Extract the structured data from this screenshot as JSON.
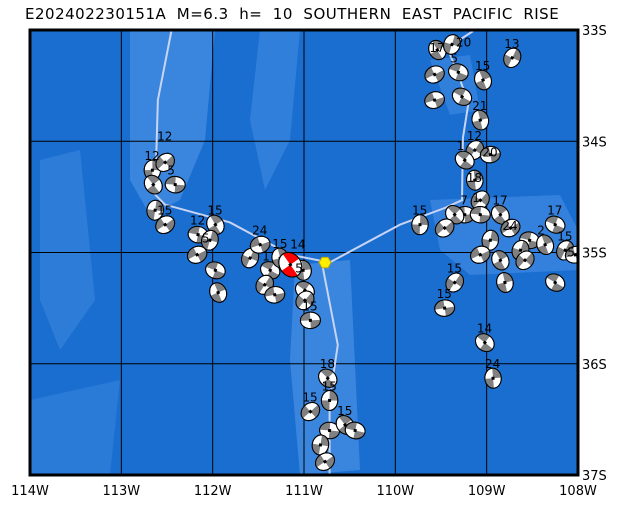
{
  "title": "E202402230151A  M=6.3  h=  10  SOUTHERN  EAST  PACIFIC  RISE",
  "map": {
    "lon_range": [
      -114,
      -108
    ],
    "lat_range": [
      -37,
      -33
    ],
    "lon_ticks": [
      {
        "v": -114,
        "label": "114W"
      },
      {
        "v": -113,
        "label": "113W"
      },
      {
        "v": -112,
        "label": "112W"
      },
      {
        "v": -111,
        "label": "111W"
      },
      {
        "v": -110,
        "label": "110W"
      },
      {
        "v": -109,
        "label": "109W"
      },
      {
        "v": -108,
        "label": "108W"
      }
    ],
    "lat_ticks": [
      {
        "v": -33,
        "label": "33S"
      },
      {
        "v": -34,
        "label": "34S"
      },
      {
        "v": -35,
        "label": "35S"
      },
      {
        "v": -36,
        "label": "36S"
      },
      {
        "v": -37,
        "label": "37S"
      }
    ],
    "grid": true,
    "colors": {
      "ocean": "#1a6ed0",
      "shallow": "#3a86de",
      "plate_boundary": "#c8d4f4",
      "main_event": "#ff0000",
      "beachball": "#808080",
      "epicenter_marker": "#ffee00"
    },
    "plate_boundary": [
      [
        [
          -112.45,
          -33.0
        ],
        [
          -112.6,
          -33.63
        ],
        [
          -112.63,
          -34.48
        ],
        [
          -112.52,
          -34.57
        ],
        [
          -111.81,
          -34.73
        ],
        [
          -111.15,
          -35.02
        ],
        [
          -110.72,
          -35.09
        ]
      ],
      [
        [
          -110.72,
          -35.09
        ],
        [
          -109.95,
          -34.75
        ],
        [
          -109.46,
          -34.6
        ],
        [
          -109.27,
          -34.53
        ],
        [
          -109.26,
          -33.97
        ],
        [
          -109.2,
          -33.66
        ],
        [
          -109.29,
          -33.45
        ],
        [
          -109.43,
          -33.16
        ],
        [
          -109.15,
          -33.01
        ]
      ],
      [
        [
          -110.8,
          -35.11
        ],
        [
          -110.63,
          -35.83
        ],
        [
          -110.72,
          -36.33
        ],
        [
          -110.72,
          -37.0
        ]
      ]
    ],
    "main_event": {
      "lon": -111.15,
      "lat": -35.11,
      "depth_label": "14"
    },
    "epicenter_marker": {
      "lon": -110.77,
      "lat": -35.09,
      "icon": "hexagon"
    },
    "events": [
      {
        "lon": -112.66,
        "lat": -34.26,
        "label": "12"
      },
      {
        "lon": -112.52,
        "lat": -34.19,
        "label": "12"
      },
      {
        "lon": -112.41,
        "lat": -34.39,
        "label": "5"
      },
      {
        "lon": -112.65,
        "lat": -34.39,
        "label": ""
      },
      {
        "lon": -112.63,
        "lat": -34.62,
        "label": ""
      },
      {
        "lon": -112.52,
        "lat": -34.75,
        "label": "15"
      },
      {
        "lon": -112.16,
        "lat": -34.84,
        "label": "12"
      },
      {
        "lon": -111.97,
        "lat": -34.75,
        "label": "15"
      },
      {
        "lon": -112.03,
        "lat": -34.89,
        "label": "5"
      },
      {
        "lon": -112.17,
        "lat": -35.02,
        "label": ""
      },
      {
        "lon": -111.97,
        "lat": -35.16,
        "label": ""
      },
      {
        "lon": -111.94,
        "lat": -35.36,
        "label": ""
      },
      {
        "lon": -111.59,
        "lat": -35.05,
        "label": ""
      },
      {
        "lon": -111.48,
        "lat": -34.93,
        "label": "24"
      },
      {
        "lon": -111.37,
        "lat": -35.16,
        "label": "1"
      },
      {
        "lon": -111.26,
        "lat": -35.05,
        "label": "15"
      },
      {
        "lon": -111.43,
        "lat": -35.29,
        "label": ""
      },
      {
        "lon": -111.32,
        "lat": -35.38,
        "label": ""
      },
      {
        "lon": -110.99,
        "lat": -35.34,
        "label": ""
      },
      {
        "lon": -111.01,
        "lat": -35.16,
        "label": "5"
      },
      {
        "lon": -110.99,
        "lat": -35.43,
        "label": ""
      },
      {
        "lon": -110.93,
        "lat": -35.61,
        "label": "15"
      },
      {
        "lon": -110.74,
        "lat": -36.13,
        "label": "18"
      },
      {
        "lon": -110.72,
        "lat": -36.33,
        "label": "15"
      },
      {
        "lon": -110.93,
        "lat": -36.43,
        "label": "15"
      },
      {
        "lon": -110.72,
        "lat": -36.6,
        "label": ""
      },
      {
        "lon": -110.55,
        "lat": -36.55,
        "label": "15"
      },
      {
        "lon": -110.82,
        "lat": -36.73,
        "label": ""
      },
      {
        "lon": -110.77,
        "lat": -36.88,
        "label": ""
      },
      {
        "lon": -110.44,
        "lat": -36.6,
        "label": ""
      },
      {
        "lon": -109.54,
        "lat": -33.18,
        "label": "17"
      },
      {
        "lon": -109.38,
        "lat": -33.13,
        "label": "20"
      },
      {
        "lon": -109.57,
        "lat": -33.4,
        "label": ""
      },
      {
        "lon": -109.31,
        "lat": -33.38,
        "label": "5"
      },
      {
        "lon": -109.04,
        "lat": -33.45,
        "label": "15"
      },
      {
        "lon": -108.72,
        "lat": -33.25,
        "label": "13"
      },
      {
        "lon": -109.57,
        "lat": -33.63,
        "label": ""
      },
      {
        "lon": -109.27,
        "lat": -33.6,
        "label": ""
      },
      {
        "lon": -109.07,
        "lat": -33.81,
        "label": "21"
      },
      {
        "lon": -109.13,
        "lat": -34.08,
        "label": "12"
      },
      {
        "lon": -108.96,
        "lat": -34.12,
        "label": "20"
      },
      {
        "lon": -109.24,
        "lat": -34.17,
        "label": "1"
      },
      {
        "lon": -109.13,
        "lat": -34.35,
        "label": "18"
      },
      {
        "lon": -109.07,
        "lat": -34.53,
        "label": "1"
      },
      {
        "lon": -109.24,
        "lat": -34.66,
        "label": ""
      },
      {
        "lon": -109.35,
        "lat": -34.66,
        "label": ""
      },
      {
        "lon": -109.73,
        "lat": -34.75,
        "label": "15"
      },
      {
        "lon": -109.46,
        "lat": -34.78,
        "label": ""
      },
      {
        "lon": -109.07,
        "lat": -34.66,
        "label": "7"
      },
      {
        "lon": -108.85,
        "lat": -34.66,
        "label": "17"
      },
      {
        "lon": -108.96,
        "lat": -34.89,
        "label": ""
      },
      {
        "lon": -108.74,
        "lat": -34.78,
        "label": "24"
      },
      {
        "lon": -108.53,
        "lat": -34.89,
        "label": ""
      },
      {
        "lon": -108.85,
        "lat": -35.07,
        "label": ""
      },
      {
        "lon": -108.63,
        "lat": -34.98,
        "label": ""
      },
      {
        "lon": -109.07,
        "lat": -35.02,
        "label": ""
      },
      {
        "lon": -108.25,
        "lat": -34.75,
        "label": "17"
      },
      {
        "lon": -108.36,
        "lat": -34.93,
        "label": "2"
      },
      {
        "lon": -108.14,
        "lat": -34.98,
        "label": "15"
      },
      {
        "lon": -108.03,
        "lat": -35.02,
        "label": "5"
      },
      {
        "lon": -108.25,
        "lat": -35.27,
        "label": ""
      },
      {
        "lon": -108.8,
        "lat": -35.27,
        "label": ""
      },
      {
        "lon": -109.35,
        "lat": -35.27,
        "label": "15"
      },
      {
        "lon": -109.46,
        "lat": -35.5,
        "label": "15"
      },
      {
        "lon": -109.02,
        "lat": -35.81,
        "label": "14"
      },
      {
        "lon": -108.93,
        "lat": -36.13,
        "label": "24"
      },
      {
        "lon": -108.58,
        "lat": -35.07,
        "label": ""
      }
    ]
  }
}
